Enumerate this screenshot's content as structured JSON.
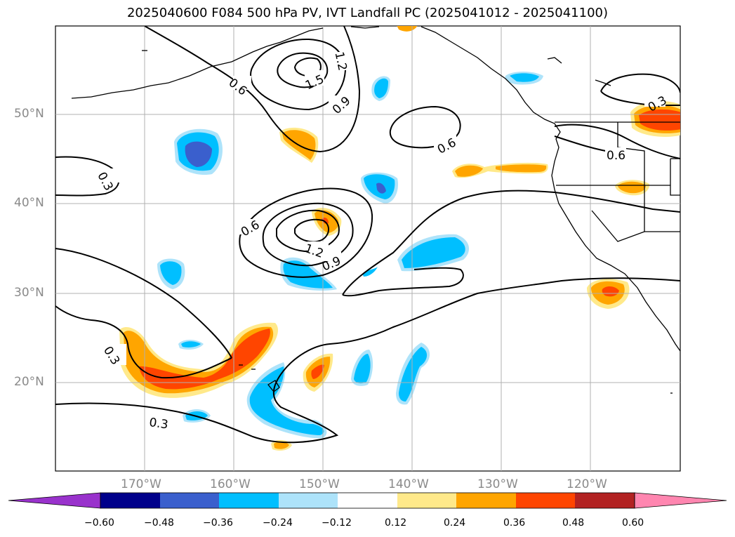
{
  "map": {
    "title": "2025040600 F084 500 hPa PV, IVT Landfall PC (2025041012 - 2025041100)",
    "lat_labels": [
      "50°N",
      "40°N",
      "30°N",
      "20°N"
    ],
    "lon_labels": [
      "170°W",
      "160°W",
      "150°W",
      "140°W",
      "130°W",
      "120°W"
    ],
    "contour_labels": [
      "0.3",
      "0.6",
      "1.2",
      "1.5",
      "0.9",
      "0.6",
      "0.3",
      "0.6",
      "0.6",
      "1.2",
      "0.9",
      "0.3",
      "0.3"
    ],
    "colorbar": {
      "tick_labels": [
        "−0.60",
        "−0.48",
        "−0.36",
        "−0.24",
        "−0.12",
        "0.12",
        "0.24",
        "0.36",
        "0.48",
        "0.60"
      ],
      "colors": [
        "#9932cc",
        "#00008b",
        "#3a5fcd",
        "#00bfff",
        "#ade3fa",
        "#ffffff",
        "#ffe98a",
        "#ffa500",
        "#ff4500",
        "#b22222",
        "#ff86b0"
      ]
    }
  }
}
